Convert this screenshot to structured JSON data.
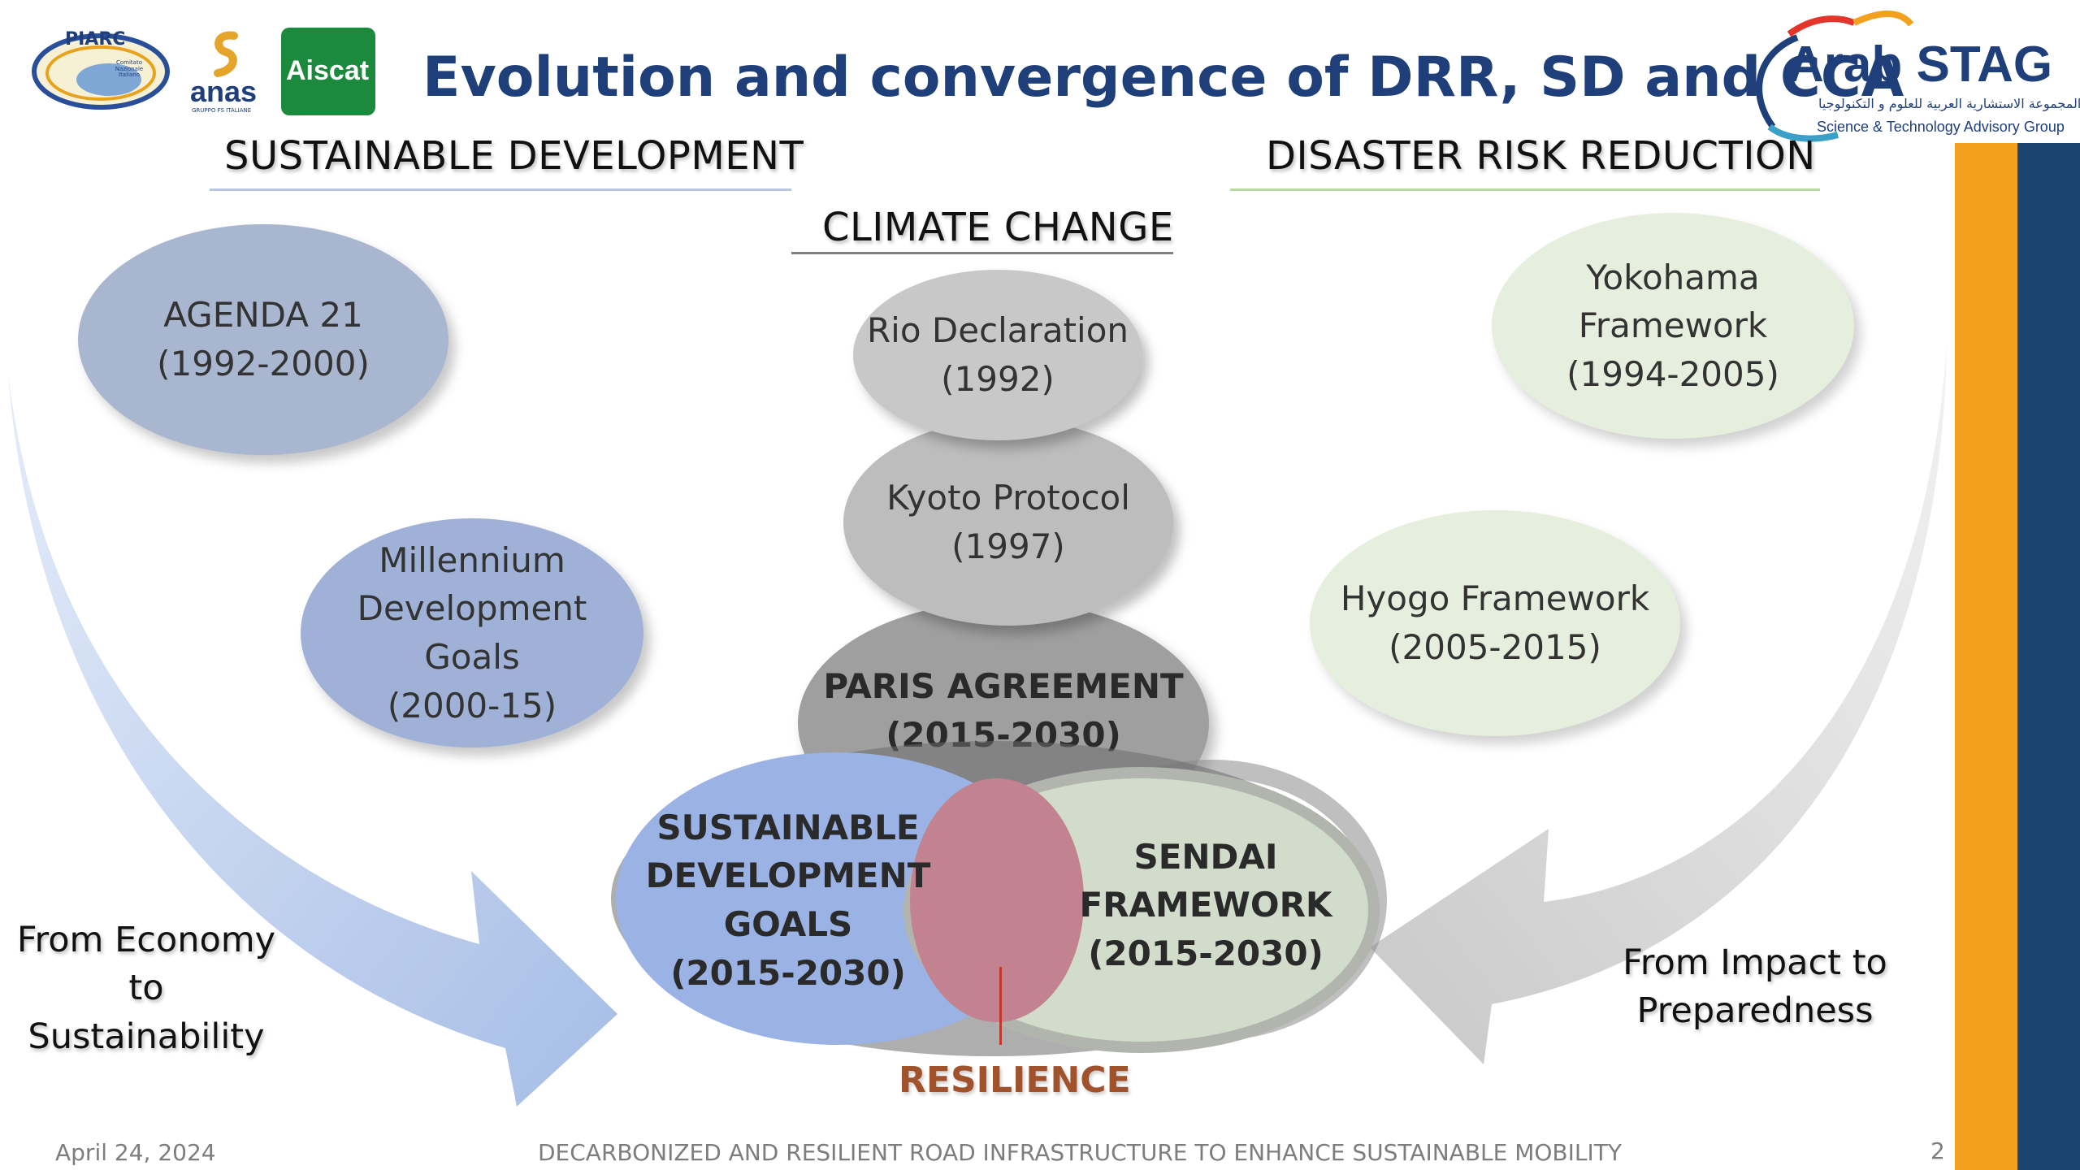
{
  "title": "Evolution and convergence of DRR, SD and CCA",
  "logos": {
    "piarc": "PIARC",
    "piarc_sub": "Comitato Nazionale Italiano",
    "anas": "anas",
    "anas_sub": "GRUPPO FS ITALIANE",
    "aiscat": "Aiscat",
    "arab_stag": "Arab STAG",
    "arab_stag_arabic": "المجموعة الاستشارية العربية للعلوم و التكنولوجيا",
    "arab_stag_sub": "Science & Technology Advisory Group"
  },
  "sections": {
    "sd": "SUSTAINABLE DEVELOPMENT",
    "drr": "DISASTER RISK REDUCTION",
    "cc": "CLIMATE CHANGE"
  },
  "sd_items": {
    "agenda21": {
      "line1": "AGENDA 21",
      "line2": "(1992-2000)"
    },
    "mdg": {
      "line1": "Millennium",
      "line2": "Development",
      "line3": "Goals",
      "line4": "(2000-15)"
    }
  },
  "cc_items": {
    "rio": {
      "line1": "Rio Declaration",
      "line2": "(1992)"
    },
    "kyoto": {
      "line1": "Kyoto Protocol",
      "line2": "(1997)"
    },
    "paris": {
      "line1": "PARIS AGREEMENT",
      "line2": "(2015-2030)"
    }
  },
  "drr_items": {
    "yokohama": {
      "line1": "Yokohama",
      "line2": "Framework",
      "line3": "(1994-2005)"
    },
    "hyogo": {
      "line1": "Hyogo Framework",
      "line2": "(2005-2015)"
    }
  },
  "convergence": {
    "sdg": {
      "line1": "SUSTAINABLE",
      "line2": "DEVELOPMENT",
      "line3": "GOALS",
      "line4": "(2015-2030)"
    },
    "sendai": {
      "line1": "SENDAI",
      "line2": "FRAMEWORK",
      "line3": "(2015-2030)"
    },
    "resilience": "RESILIENCE"
  },
  "captions": {
    "left": {
      "line1": "From Economy to",
      "line2": "Sustainability"
    },
    "right": {
      "line1": "From Impact to",
      "line2": "Preparedness"
    }
  },
  "footer": {
    "date": "April 24, 2024",
    "center": "DECARBONIZED AND RESILIENT ROAD INFRASTRUCTURE TO ENHANCE SUSTAINABLE MOBILITY",
    "page": "2"
  },
  "colors": {
    "title": "#1f3f7a",
    "sd_fill": "#a9b6cf",
    "mdg_fill": "#9fb1d6",
    "cc_fill": "#c4c4c4",
    "drr_fill": "#e6efdd",
    "sdg_fill": "#9ab2e4",
    "sendai_fill": "#d2dccb",
    "resilience_fill": "#c2828f",
    "resilience_text": "#a0522d",
    "bar_orange": "#f2a01e",
    "bar_blue": "#1c4470"
  }
}
